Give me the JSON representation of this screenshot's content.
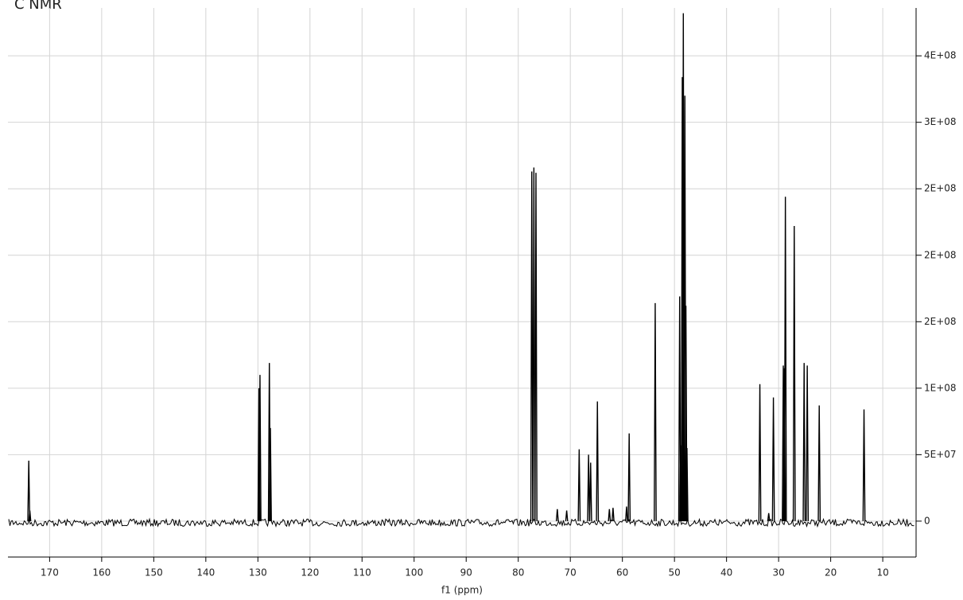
{
  "chart_data": {
    "type": "spectrum",
    "title": "C NMR",
    "xlabel": "f1 (ppm)",
    "color": "#000000",
    "grid": true,
    "xlim": [
      178,
      3.6
    ],
    "xticks": [
      170,
      160,
      150,
      140,
      130,
      120,
      110,
      100,
      90,
      80,
      70,
      60,
      50,
      40,
      30,
      20,
      10
    ],
    "ylim": [
      -27000000,
      386000000
    ],
    "yticks": [
      0,
      {
        "value": 50000000,
        "label": "5E+07"
      },
      {
        "value": 100000000,
        "label": "1E+08"
      },
      {
        "value": 150000000,
        "label": "2E+08"
      },
      {
        "value": 200000000,
        "label": "2E+08"
      },
      {
        "value": 250000000,
        "label": "2E+08"
      },
      {
        "value": 300000000,
        "label": "3E+08"
      },
      {
        "value": 350000000,
        "label": "4E+08"
      }
    ],
    "series": [
      {
        "x": [
          174.0,
          173.8,
          129.8,
          129.6,
          127.8,
          127.6,
          77.4,
          77.0,
          76.6,
          72.5,
          70.7,
          68.3,
          66.5,
          66.1,
          64.8,
          62.5,
          61.8,
          59.2,
          58.7,
          53.7,
          49.0,
          48.8,
          48.5,
          48.3,
          48.0,
          47.8,
          47.6,
          33.6,
          31.9,
          31.0,
          29.1,
          28.9,
          28.7,
          27.0,
          25.1,
          24.5,
          22.2,
          13.6
        ],
        "values": [
          45500000,
          8000000,
          100000000,
          110000000,
          119000000,
          70000000,
          263000000,
          266000000,
          262000000,
          9000000,
          8000000,
          54000000,
          50000000,
          44000000,
          90000000,
          9000000,
          10000000,
          11000000,
          66000000,
          164000000,
          169000000,
          57000000,
          334000000,
          382000000,
          320000000,
          162000000,
          55000000,
          103000000,
          6000000,
          93000000,
          117000000,
          115000000,
          244000000,
          222000000,
          119000000,
          117000000,
          87000000,
          84000000
        ]
      }
    ]
  }
}
